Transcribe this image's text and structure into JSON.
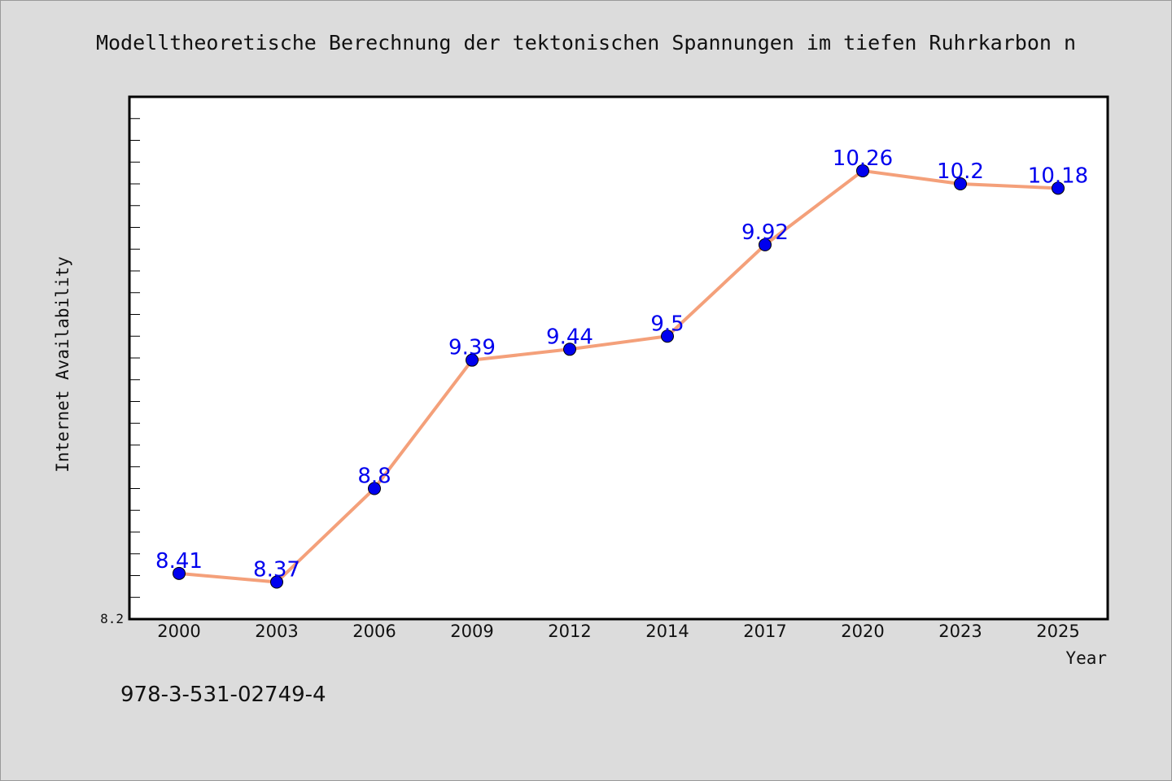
{
  "chart_data": {
    "type": "line",
    "title": "Modelltheoretische Berechnung der tektonischen Spannungen im tiefen Ruhrkarbon n",
    "xlabel": "Year",
    "ylabel": "Internet Availability",
    "categories": [
      "2000",
      "2003",
      "2006",
      "2009",
      "2012",
      "2014",
      "2017",
      "2020",
      "2023",
      "2025"
    ],
    "series": [
      {
        "values": [
          8.41,
          8.37,
          8.8,
          9.39,
          9.44,
          9.5,
          9.92,
          10.26,
          10.2,
          10.18
        ]
      }
    ],
    "data_labels": [
      "8.41",
      "8.37",
      "8.8",
      "9.39",
      "9.44",
      "9.5",
      "9.92",
      "10.26",
      "10.2",
      "10.18"
    ],
    "ylim": [
      8.2,
      10.6
    ],
    "y_tick_labels": [
      "8.2"
    ],
    "grid": false,
    "line_color": "#f4a07a",
    "marker_color": "#0000ee",
    "label_color": "#0000ee"
  },
  "footer": {
    "isbn": "978-3-531-02749-4"
  }
}
